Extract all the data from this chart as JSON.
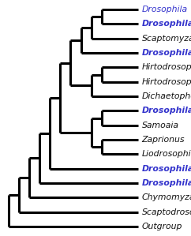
{
  "taxa": [
    {
      "name": "Drosophila",
      "color": "#3333cc",
      "bold": false,
      "arrow": null
    },
    {
      "name": "Drosophila",
      "color": "#3333cc",
      "bold": true,
      "arrow": null
    },
    {
      "name": "Scaptomyza",
      "color": "#111111",
      "bold": false,
      "arrow": null
    },
    {
      "name": "Drosophila",
      "color": "#3333cc",
      "bold": true,
      "arrow": null
    },
    {
      "name": "Hirtodrosophila",
      "color": "#111111",
      "bold": false,
      "arrow": null
    },
    {
      "name": "Hirtodrosophila",
      "color": "#111111",
      "bold": false,
      "arrow": null
    },
    {
      "name": "Dichaetophora",
      "color": "#111111",
      "bold": false,
      "arrow": null
    },
    {
      "name": "Drosophila",
      "color": "#3333cc",
      "bold": true,
      "arrow": "orange"
    },
    {
      "name": "Samoaia",
      "color": "#111111",
      "bold": false,
      "arrow": null
    },
    {
      "name": "Zaprionus",
      "color": "#111111",
      "bold": false,
      "arrow": null
    },
    {
      "name": "Liodrosophila",
      "color": "#111111",
      "bold": false,
      "arrow": null
    },
    {
      "name": "Drosophila",
      "color": "#3333cc",
      "bold": true,
      "arrow": null
    },
    {
      "name": "Drosophila",
      "color": "#3333cc",
      "bold": true,
      "arrow": "red"
    },
    {
      "name": "Chymomyza",
      "color": "#111111",
      "bold": false,
      "arrow": null
    },
    {
      "name": "Scaptodrosophila",
      "color": "#111111",
      "bold": false,
      "arrow": null
    },
    {
      "name": "Outgroup",
      "color": "#111111",
      "bold": false,
      "arrow": null
    }
  ],
  "arrow_orange_color": "#E8923A",
  "arrow_red_color": "#D93020",
  "line_color": "#000000",
  "bg_color": "#ffffff",
  "line_width": 2.2,
  "label_fontsize": 7.8,
  "fig_width": 2.42,
  "fig_height": 2.99,
  "dpi": 100
}
